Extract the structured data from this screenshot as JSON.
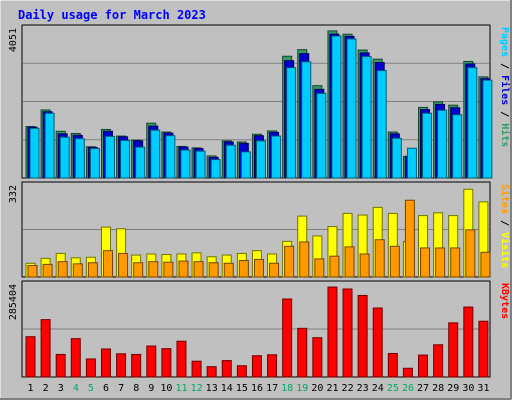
{
  "chart_data": [
    {
      "type": "bar",
      "title": "Daily usage for March 2023",
      "ylabel_parts": [
        "Pages",
        "Files",
        "Hits"
      ],
      "ylabel_separator": " / ",
      "ymax_label": "4051",
      "ylim": [
        0,
        4051
      ],
      "categories": [
        "1",
        "2",
        "3",
        "4",
        "5",
        "6",
        "7",
        "8",
        "9",
        "10",
        "11",
        "12",
        "13",
        "14",
        "15",
        "16",
        "17",
        "18",
        "19",
        "20",
        "21",
        "22",
        "23",
        "24",
        "25",
        "26",
        "27",
        "28",
        "29",
        "30",
        "31"
      ],
      "series": [
        {
          "name": "Hits",
          "color": "#339966",
          "values": [
            1400,
            1850,
            1270,
            1210,
            850,
            1320,
            1140,
            1030,
            1490,
            1250,
            860,
            820,
            600,
            1010,
            980,
            1190,
            1280,
            3310,
            3490,
            2510,
            4000,
            3910,
            3480,
            3230,
            1250,
            590,
            1920,
            2070,
            1980,
            3170,
            2750
          ]
        },
        {
          "name": "Files",
          "color": "#0000cc",
          "values": [
            1380,
            1800,
            1200,
            1160,
            830,
            1270,
            1120,
            1010,
            1410,
            1220,
            840,
            800,
            560,
            980,
            940,
            1150,
            1240,
            3190,
            3380,
            2410,
            3910,
            3850,
            3400,
            3140,
            1200,
            580,
            1860,
            2000,
            1910,
            3100,
            2700
          ]
        },
        {
          "name": "Pages",
          "color": "#00ccff",
          "values": [
            1350,
            1760,
            1110,
            1070,
            800,
            1130,
            1020,
            840,
            1300,
            1150,
            760,
            730,
            500,
            890,
            710,
            1010,
            1140,
            3000,
            3160,
            2300,
            3860,
            3780,
            3300,
            2920,
            1080,
            810,
            1760,
            1840,
            1720,
            3000,
            2660
          ]
        }
      ]
    },
    {
      "type": "bar",
      "ylabel_parts": [
        "Sites",
        "Visits"
      ],
      "ylabel_separator": " / ",
      "ymax_label": "332",
      "ylim": [
        0,
        332
      ],
      "categories": [
        "1",
        "2",
        "3",
        "4",
        "5",
        "6",
        "7",
        "8",
        "9",
        "10",
        "11",
        "12",
        "13",
        "14",
        "15",
        "16",
        "17",
        "18",
        "19",
        "20",
        "21",
        "22",
        "23",
        "24",
        "25",
        "26",
        "27",
        "28",
        "29",
        "30",
        "31"
      ],
      "series": [
        {
          "name": "Visits",
          "color": "#ffff00",
          "values": [
            50,
            68,
            86,
            70,
            72,
            182,
            176,
            80,
            84,
            82,
            84,
            88,
            74,
            80,
            86,
            96,
            84,
            130,
            222,
            150,
            184,
            232,
            226,
            254,
            232,
            130,
            224,
            234,
            224,
            320,
            274
          ]
        },
        {
          "name": "Sites",
          "color": "#ff9900",
          "values": [
            42,
            46,
            56,
            48,
            52,
            96,
            86,
            52,
            56,
            54,
            58,
            56,
            52,
            50,
            60,
            64,
            50,
            112,
            128,
            66,
            76,
            110,
            84,
            136,
            112,
            280,
            106,
            106,
            106,
            172,
            90
          ]
        }
      ]
    },
    {
      "type": "bar",
      "ylabel_parts": [
        "KBytes"
      ],
      "ylabel_separator": "",
      "ymax_label": "285404",
      "ylim": [
        0,
        285404
      ],
      "categories": [
        "1",
        "2",
        "3",
        "4",
        "5",
        "6",
        "7",
        "8",
        "9",
        "10",
        "11",
        "12",
        "13",
        "14",
        "15",
        "16",
        "17",
        "18",
        "19",
        "20",
        "21",
        "22",
        "23",
        "24",
        "25",
        "26",
        "27",
        "28",
        "29",
        "30",
        "31"
      ],
      "series": [
        {
          "name": "KBytes",
          "color": "#ff0000",
          "values": [
            125000,
            178000,
            70000,
            119000,
            56000,
            87000,
            72000,
            70000,
            96000,
            88000,
            111000,
            49000,
            32000,
            51000,
            35000,
            66000,
            69000,
            242000,
            151000,
            122000,
            279000,
            273000,
            253000,
            214000,
            73000,
            27000,
            68000,
            100000,
            168000,
            217000,
            173000
          ]
        }
      ]
    }
  ],
  "xaxis": {
    "labels": [
      "1",
      "2",
      "3",
      "4",
      "5",
      "6",
      "7",
      "8",
      "9",
      "10",
      "11",
      "12",
      "13",
      "14",
      "15",
      "16",
      "17",
      "18",
      "19",
      "20",
      "21",
      "22",
      "23",
      "24",
      "25",
      "26",
      "27",
      "28",
      "29",
      "30",
      "31"
    ],
    "weekend_days": [
      "4",
      "5",
      "11",
      "12",
      "18",
      "19",
      "25",
      "26"
    ],
    "weekday_color": "#000000",
    "weekend_color": "#00aa66"
  },
  "colors": {
    "background": "#c0c0c0",
    "title": "#0000ff",
    "plot_bg": "#c0c0c0",
    "axis_label_separator": "#000000"
  }
}
